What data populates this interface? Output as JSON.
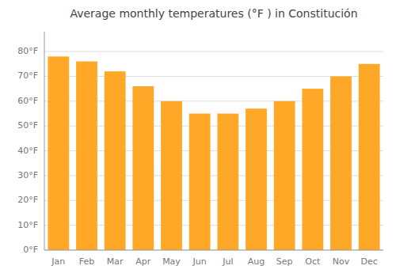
{
  "chart_data": {
    "type": "bar",
    "title": "Average monthly temperatures (°F ) in Constitución",
    "categories": [
      "Jan",
      "Feb",
      "Mar",
      "Apr",
      "May",
      "Jun",
      "Jul",
      "Aug",
      "Sep",
      "Oct",
      "Nov",
      "Dec"
    ],
    "values": [
      78,
      76,
      72,
      66,
      60,
      55,
      55,
      57,
      60,
      65,
      70,
      75
    ],
    "color": "#FFA726",
    "ylim": [
      0,
      88
    ],
    "yticks": [
      {
        "value": 0,
        "label": "0°F"
      },
      {
        "value": 10,
        "label": "10°F"
      },
      {
        "value": 20,
        "label": "20°F"
      },
      {
        "value": 30,
        "label": "30°F"
      },
      {
        "value": 40,
        "label": "40°F"
      },
      {
        "value": 50,
        "label": "50°F"
      },
      {
        "value": 60,
        "label": "60°F"
      },
      {
        "value": 70,
        "label": "70°F"
      },
      {
        "value": 80,
        "label": "80°F"
      }
    ],
    "grid": true
  }
}
